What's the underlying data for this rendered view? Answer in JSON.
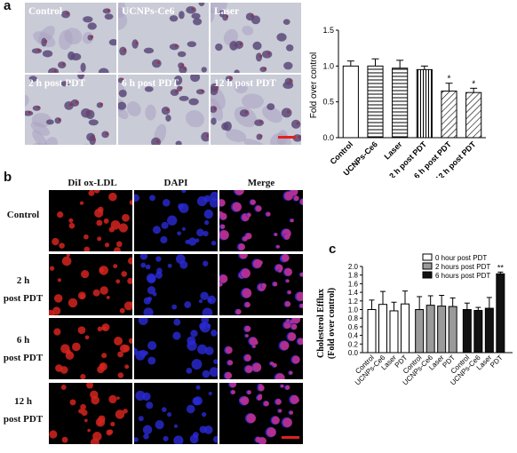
{
  "panel_labels": {
    "a": "a",
    "b": "b",
    "c": "c"
  },
  "panel_a": {
    "micrographs": [
      "Control",
      "UCNPs-Ce6",
      "Laser",
      "2 h post PDT",
      "6 h post PDT",
      "12 h post PDT"
    ]
  },
  "panel_b": {
    "columns": [
      "DiI ox-LDL",
      "DAPI",
      "Merge"
    ],
    "rows": [
      {
        "line1": "Control",
        "line2": ""
      },
      {
        "line1": "2 h",
        "line2": "post PDT"
      },
      {
        "line1": "6 h",
        "line2": "post PDT"
      },
      {
        "line1": "12 h",
        "line2": "post PDT"
      }
    ]
  },
  "colors": {
    "scale_bar": "#e0211c",
    "bar_black": "#111111",
    "bar_gray": "#9a9a9a",
    "bar_white": "#ffffff"
  },
  "chart_data": [
    {
      "id": "a",
      "type": "bar",
      "categories": [
        "Control",
        "UCNPs-Ce6",
        "Laser",
        "2 h post PDT",
        "6 h post PDT",
        "12 h post PDT"
      ],
      "values": [
        1.0,
        1.0,
        0.97,
        0.95,
        0.65,
        0.63
      ],
      "errors": [
        0.07,
        0.1,
        0.11,
        0.05,
        0.11,
        0.06
      ],
      "patterns": [
        "open",
        "horizontal",
        "horizontal",
        "vertical",
        "diagonal",
        "diagonal"
      ],
      "significance": [
        "",
        "",
        "",
        "",
        "*",
        "*"
      ],
      "ylabel": "Fold over control",
      "ylim": [
        0,
        1.5
      ],
      "yticks": [
        "0.0",
        "0.5",
        "1.0",
        "1.5"
      ]
    },
    {
      "id": "c",
      "type": "bar",
      "categories": [
        "Control",
        "UCNPs-Ce6",
        "Laser",
        "PDT"
      ],
      "series": [
        {
          "name": "0 hour post PDT",
          "color": "#ffffff",
          "values": [
            1.0,
            1.12,
            0.97,
            1.13
          ],
          "errors": [
            0.22,
            0.3,
            0.2,
            0.3
          ]
        },
        {
          "name": "2 hours post PDT",
          "color": "#9a9a9a",
          "values": [
            1.0,
            1.1,
            1.08,
            1.07
          ],
          "errors": [
            0.3,
            0.22,
            0.25,
            0.2
          ]
        },
        {
          "name": "6 hours post PDT",
          "color": "#111111",
          "values": [
            1.0,
            0.98,
            1.03,
            1.83
          ],
          "errors": [
            0.15,
            0.07,
            0.25,
            0.04
          ]
        }
      ],
      "significance_text": "**",
      "ylabel_line1": "Cholesterol Efflux",
      "ylabel_line2": "(Fold over control)",
      "ylim": [
        0,
        2.0
      ],
      "yticks": [
        "0.0",
        "0.2",
        "0.4",
        "0.6",
        "0.8",
        "1.0",
        "1.2",
        "1.4",
        "1.6",
        "1.8",
        "2.0"
      ],
      "legend_position": "top-right"
    }
  ]
}
